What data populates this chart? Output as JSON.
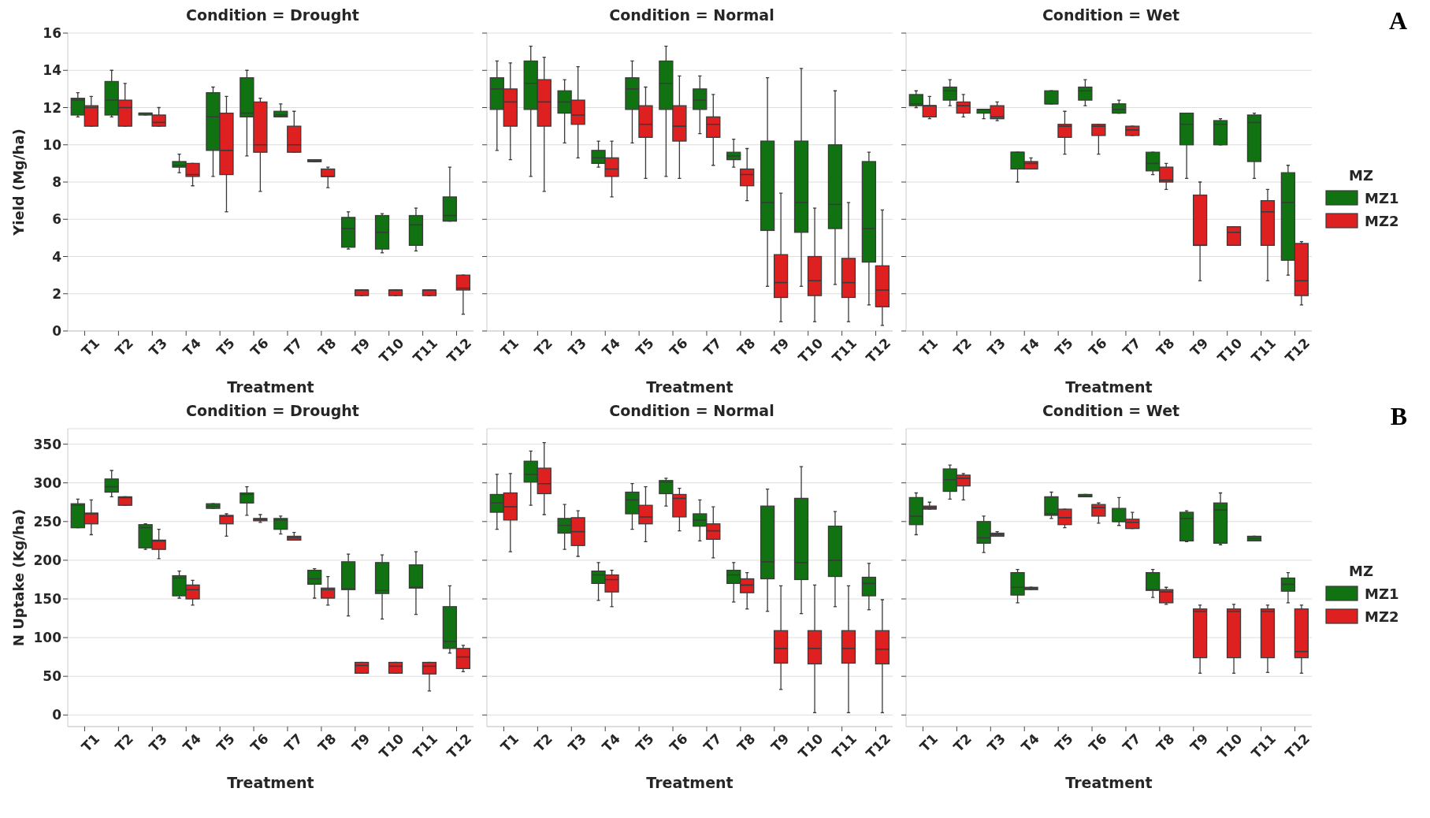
{
  "chart_data": [
    {
      "type": "box",
      "title": "Condition = Drought",
      "xlabel": "Treatment",
      "ylabel": "Yield (Mg/ha)",
      "categories": [
        "T1",
        "T2",
        "T3",
        "T4",
        "T5",
        "T6",
        "T7",
        "T8",
        "T9",
        "T10",
        "T11",
        "T12"
      ],
      "ylim": [
        0,
        16
      ],
      "yticks": [
        0,
        2,
        4,
        6,
        8,
        10,
        12,
        14,
        16
      ],
      "grid": "y",
      "series": [
        {
          "color": "#117211",
          "boxes": [
            {
              "low": 11.5,
              "q1": 11.6,
              "median": 12.4,
              "q3": 12.5,
              "high": 12.8
            },
            {
              "low": 11.5,
              "q1": 11.6,
              "median": 12.4,
              "q3": 13.4,
              "high": 14.0
            },
            {
              "low": 11.6,
              "q1": 11.6,
              "median": 11.7,
              "q3": 11.7,
              "high": 11.7
            },
            {
              "low": 8.5,
              "q1": 8.8,
              "median": 8.9,
              "q3": 9.1,
              "high": 9.5
            },
            {
              "low": 8.3,
              "q1": 9.7,
              "median": 11.5,
              "q3": 12.8,
              "high": 13.1
            },
            {
              "low": 9.4,
              "q1": 11.5,
              "median": 11.7,
              "q3": 13.6,
              "high": 14.0
            },
            {
              "low": 11.5,
              "q1": 11.5,
              "median": 11.6,
              "q3": 11.8,
              "high": 12.2
            },
            {
              "low": 9.1,
              "q1": 9.1,
              "median": 9.1,
              "q3": 9.2,
              "high": 9.2
            },
            {
              "low": 4.4,
              "q1": 4.5,
              "median": 5.5,
              "q3": 6.1,
              "high": 6.4
            },
            {
              "low": 4.2,
              "q1": 4.4,
              "median": 5.3,
              "q3": 6.2,
              "high": 6.3
            },
            {
              "low": 4.3,
              "q1": 4.6,
              "median": 5.7,
              "q3": 6.2,
              "high": 6.6
            },
            {
              "low": 5.9,
              "q1": 5.9,
              "median": 6.2,
              "q3": 7.2,
              "high": 8.8
            }
          ]
        },
        {
          "color": "#df2020",
          "boxes": [
            {
              "low": 11.0,
              "q1": 11.0,
              "median": 12.0,
              "q3": 12.1,
              "high": 12.6
            },
            {
              "low": 11.0,
              "q1": 11.0,
              "median": 12.0,
              "q3": 12.4,
              "high": 13.3
            },
            {
              "low": 11.0,
              "q1": 11.0,
              "median": 11.2,
              "q3": 11.6,
              "high": 12.0
            },
            {
              "low": 7.8,
              "q1": 8.3,
              "median": 8.4,
              "q3": 9.0,
              "high": 9.0
            },
            {
              "low": 6.4,
              "q1": 8.4,
              "median": 9.7,
              "q3": 11.7,
              "high": 12.6
            },
            {
              "low": 7.5,
              "q1": 9.6,
              "median": 10.0,
              "q3": 12.3,
              "high": 12.5
            },
            {
              "low": 9.6,
              "q1": 9.6,
              "median": 10.0,
              "q3": 11.0,
              "high": 11.8
            },
            {
              "low": 7.7,
              "q1": 8.3,
              "median": 8.3,
              "q3": 8.7,
              "high": 8.8
            },
            {
              "low": 1.9,
              "q1": 1.9,
              "median": 2.2,
              "q3": 2.2,
              "high": 2.2
            },
            {
              "low": 1.9,
              "q1": 1.9,
              "median": 2.2,
              "q3": 2.2,
              "high": 2.2
            },
            {
              "low": 1.9,
              "q1": 1.9,
              "median": 2.2,
              "q3": 2.2,
              "high": 2.2
            },
            {
              "low": 0.9,
              "q1": 2.2,
              "median": 2.3,
              "q3": 3.0,
              "high": 3.0
            }
          ]
        }
      ]
    },
    {
      "type": "box",
      "title": "Condition = Normal",
      "xlabel": "Treatment",
      "categories": [
        "T1",
        "T2",
        "T3",
        "T4",
        "T5",
        "T6",
        "T7",
        "T8",
        "T9",
        "T10",
        "T11",
        "T12"
      ],
      "ylim": [
        0,
        16
      ],
      "yticks": [
        0,
        2,
        4,
        6,
        8,
        10,
        12,
        14,
        16
      ],
      "grid": "y",
      "tick_labels": "x",
      "series": [
        {
          "color": "#117211",
          "boxes": [
            {
              "low": 9.7,
              "q1": 11.9,
              "median": 13.0,
              "q3": 13.6,
              "high": 14.5
            },
            {
              "low": 8.3,
              "q1": 11.9,
              "median": 13.3,
              "q3": 14.5,
              "high": 15.3
            },
            {
              "low": 10.1,
              "q1": 11.7,
              "median": 12.3,
              "q3": 12.9,
              "high": 13.5
            },
            {
              "low": 8.8,
              "q1": 9.0,
              "median": 9.3,
              "q3": 9.7,
              "high": 10.2
            },
            {
              "low": 10.1,
              "q1": 11.9,
              "median": 13.0,
              "q3": 13.6,
              "high": 14.5
            },
            {
              "low": 8.3,
              "q1": 11.9,
              "median": 13.3,
              "q3": 14.5,
              "high": 15.3
            },
            {
              "low": 10.6,
              "q1": 11.9,
              "median": 12.4,
              "q3": 13.0,
              "high": 13.7
            },
            {
              "low": 8.8,
              "q1": 9.2,
              "median": 9.4,
              "q3": 9.6,
              "high": 10.3
            },
            {
              "low": 2.4,
              "q1": 5.4,
              "median": 6.9,
              "q3": 10.2,
              "high": 13.6
            },
            {
              "low": 2.4,
              "q1": 5.3,
              "median": 6.9,
              "q3": 10.2,
              "high": 14.1
            },
            {
              "low": 2.5,
              "q1": 5.5,
              "median": 6.8,
              "q3": 10.0,
              "high": 12.9
            },
            {
              "low": 1.4,
              "q1": 3.7,
              "median": 5.5,
              "q3": 9.1,
              "high": 9.6
            }
          ]
        },
        {
          "color": "#df2020",
          "boxes": [
            {
              "low": 9.2,
              "q1": 11.0,
              "median": 12.3,
              "q3": 13.0,
              "high": 14.4
            },
            {
              "low": 7.5,
              "q1": 11.0,
              "median": 12.3,
              "q3": 13.5,
              "high": 14.7
            },
            {
              "low": 9.3,
              "q1": 11.1,
              "median": 11.6,
              "q3": 12.4,
              "high": 14.2
            },
            {
              "low": 7.2,
              "q1": 8.3,
              "median": 8.7,
              "q3": 9.3,
              "high": 10.2
            },
            {
              "low": 8.2,
              "q1": 10.4,
              "median": 11.1,
              "q3": 12.1,
              "high": 13.1
            },
            {
              "low": 8.2,
              "q1": 10.2,
              "median": 11.0,
              "q3": 12.1,
              "high": 13.7
            },
            {
              "low": 8.9,
              "q1": 10.4,
              "median": 11.1,
              "q3": 11.5,
              "high": 12.7
            },
            {
              "low": 7.0,
              "q1": 7.8,
              "median": 8.4,
              "q3": 8.7,
              "high": 9.8
            },
            {
              "low": 0.5,
              "q1": 1.8,
              "median": 2.6,
              "q3": 4.1,
              "high": 7.4
            },
            {
              "low": 0.5,
              "q1": 1.9,
              "median": 2.7,
              "q3": 4.0,
              "high": 6.6
            },
            {
              "low": 0.5,
              "q1": 1.8,
              "median": 2.6,
              "q3": 3.9,
              "high": 6.9
            },
            {
              "low": 0.3,
              "q1": 1.3,
              "median": 2.2,
              "q3": 3.5,
              "high": 6.5
            }
          ]
        }
      ]
    },
    {
      "type": "box",
      "title": "Condition = Wet",
      "xlabel": "Treatment",
      "categories": [
        "T1",
        "T2",
        "T3",
        "T4",
        "T5",
        "T6",
        "T7",
        "T8",
        "T9",
        "T10",
        "T11",
        "T12"
      ],
      "ylim": [
        0,
        16
      ],
      "yticks": [
        0,
        2,
        4,
        6,
        8,
        10,
        12,
        14,
        16
      ],
      "grid": "y",
      "tick_labels": "x",
      "legend": "right",
      "legend_title": "MZ",
      "annotations": [
        "A"
      ],
      "series": [
        {
          "name": "MZ1",
          "color": "#117211",
          "boxes": [
            {
              "low": 12.0,
              "q1": 12.1,
              "median": 12.2,
              "q3": 12.7,
              "high": 12.9
            },
            {
              "low": 12.1,
              "q1": 12.4,
              "median": 12.9,
              "q3": 13.1,
              "high": 13.5
            },
            {
              "low": 11.4,
              "q1": 11.7,
              "median": 11.9,
              "q3": 11.9,
              "high": 11.9
            },
            {
              "low": 8.0,
              "q1": 8.7,
              "median": 9.6,
              "q3": 9.6,
              "high": 9.6
            },
            {
              "low": 12.2,
              "q1": 12.2,
              "median": 12.2,
              "q3": 12.9,
              "high": 12.9
            },
            {
              "low": 12.1,
              "q1": 12.4,
              "median": 12.9,
              "q3": 13.1,
              "high": 13.5
            },
            {
              "low": 11.7,
              "q1": 11.7,
              "median": 11.9,
              "q3": 12.2,
              "high": 12.4
            },
            {
              "low": 8.4,
              "q1": 8.6,
              "median": 9.0,
              "q3": 9.6,
              "high": 9.6
            },
            {
              "low": 8.2,
              "q1": 10.0,
              "median": 11.1,
              "q3": 11.7,
              "high": 11.7
            },
            {
              "low": 10.0,
              "q1": 10.0,
              "median": 11.1,
              "q3": 11.3,
              "high": 11.4
            },
            {
              "low": 8.2,
              "q1": 9.1,
              "median": 11.2,
              "q3": 11.6,
              "high": 11.7
            },
            {
              "low": 3.0,
              "q1": 3.8,
              "median": 6.9,
              "q3": 8.5,
              "high": 8.9
            }
          ]
        },
        {
          "name": "MZ2",
          "color": "#df2020",
          "boxes": [
            {
              "low": 11.4,
              "q1": 11.5,
              "median": 12.1,
              "q3": 12.1,
              "high": 12.6
            },
            {
              "low": 11.5,
              "q1": 11.7,
              "median": 12.1,
              "q3": 12.3,
              "high": 12.7
            },
            {
              "low": 11.3,
              "q1": 11.4,
              "median": 11.5,
              "q3": 12.1,
              "high": 12.3
            },
            {
              "low": 8.7,
              "q1": 8.7,
              "median": 9.0,
              "q3": 9.1,
              "high": 9.3
            },
            {
              "low": 9.5,
              "q1": 10.4,
              "median": 11.0,
              "q3": 11.1,
              "high": 11.8
            },
            {
              "low": 9.5,
              "q1": 10.5,
              "median": 11.0,
              "q3": 11.1,
              "high": 11.1
            },
            {
              "low": 10.5,
              "q1": 10.5,
              "median": 10.8,
              "q3": 11.0,
              "high": 11.0
            },
            {
              "low": 7.6,
              "q1": 8.0,
              "median": 8.1,
              "q3": 8.8,
              "high": 9.0
            },
            {
              "low": 2.7,
              "q1": 4.6,
              "median": 4.6,
              "q3": 7.3,
              "high": 8.0
            },
            {
              "low": 4.6,
              "q1": 4.6,
              "median": 5.3,
              "q3": 5.6,
              "high": 5.6
            },
            {
              "low": 2.7,
              "q1": 4.6,
              "median": 6.4,
              "q3": 7.0,
              "high": 7.6
            },
            {
              "low": 1.4,
              "q1": 1.9,
              "median": 2.7,
              "q3": 4.7,
              "high": 4.8
            }
          ]
        }
      ]
    },
    {
      "type": "box",
      "title": "Condition = Drought",
      "xlabel": "Treatment",
      "ylabel": "N Uptake (Kg/ha)",
      "categories": [
        "T1",
        "T2",
        "T3",
        "T4",
        "T5",
        "T6",
        "T7",
        "T8",
        "T9",
        "T10",
        "T11",
        "T12"
      ],
      "ylim": [
        -15,
        370
      ],
      "yticks": [
        0,
        50,
        100,
        150,
        200,
        250,
        300,
        350
      ],
      "grid": "y",
      "series": [
        {
          "color": "#117211",
          "boxes": [
            {
              "low": 242,
              "q1": 242,
              "median": 271,
              "q3": 273,
              "high": 279
            },
            {
              "low": 282,
              "q1": 288,
              "median": 295,
              "q3": 305,
              "high": 316
            },
            {
              "low": 214,
              "q1": 216,
              "median": 242,
              "q3": 246,
              "high": 247
            },
            {
              "low": 151,
              "q1": 154,
              "median": 177,
              "q3": 180,
              "high": 186
            },
            {
              "low": 267,
              "q1": 267,
              "median": 270,
              "q3": 273,
              "high": 273
            },
            {
              "low": 258,
              "q1": 274,
              "median": 285,
              "q3": 287,
              "high": 295
            },
            {
              "low": 234,
              "q1": 240,
              "median": 252,
              "q3": 254,
              "high": 257
            },
            {
              "low": 151,
              "q1": 169,
              "median": 176,
              "q3": 187,
              "high": 189
            },
            {
              "low": 128,
              "q1": 162,
              "median": 163,
              "q3": 198,
              "high": 208
            },
            {
              "low": 124,
              "q1": 157,
              "median": 161,
              "q3": 197,
              "high": 207
            },
            {
              "low": 130,
              "q1": 164,
              "median": 165,
              "q3": 194,
              "high": 211
            },
            {
              "low": 80,
              "q1": 86,
              "median": 95,
              "q3": 140,
              "high": 167
            }
          ]
        },
        {
          "color": "#df2020",
          "boxes": [
            {
              "low": 233,
              "q1": 247,
              "median": 260,
              "q3": 261,
              "high": 278
            },
            {
              "low": 271,
              "q1": 271,
              "median": 281,
              "q3": 282,
              "high": 282
            },
            {
              "low": 202,
              "q1": 214,
              "median": 225,
              "q3": 226,
              "high": 240
            },
            {
              "low": 142,
              "q1": 150,
              "median": 162,
              "q3": 168,
              "high": 174
            },
            {
              "low": 231,
              "q1": 247,
              "median": 257,
              "q3": 258,
              "high": 260
            },
            {
              "low": 249,
              "q1": 251,
              "median": 253,
              "q3": 254,
              "high": 259
            },
            {
              "low": 226,
              "q1": 226,
              "median": 229,
              "q3": 231,
              "high": 236
            },
            {
              "low": 142,
              "q1": 151,
              "median": 162,
              "q3": 164,
              "high": 179
            },
            {
              "low": 54,
              "q1": 54,
              "median": 64,
              "q3": 68,
              "high": 68
            },
            {
              "low": 54,
              "q1": 54,
              "median": 63,
              "q3": 68,
              "high": 68
            },
            {
              "low": 31,
              "q1": 53,
              "median": 63,
              "q3": 68,
              "high": 68
            },
            {
              "low": 56,
              "q1": 60,
              "median": 75,
              "q3": 86,
              "high": 90
            }
          ]
        }
      ]
    },
    {
      "type": "box",
      "title": "Condition = Normal",
      "xlabel": "Treatment",
      "categories": [
        "T1",
        "T2",
        "T3",
        "T4",
        "T5",
        "T6",
        "T7",
        "T8",
        "T9",
        "T10",
        "T11",
        "T12"
      ],
      "ylim": [
        -15,
        370
      ],
      "yticks": [
        0,
        50,
        100,
        150,
        200,
        250,
        300,
        350
      ],
      "grid": "y",
      "tick_labels": "x",
      "series": [
        {
          "color": "#117211",
          "boxes": [
            {
              "low": 240,
              "q1": 262,
              "median": 274,
              "q3": 285,
              "high": 311
            },
            {
              "low": 271,
              "q1": 301,
              "median": 311,
              "q3": 328,
              "high": 341
            },
            {
              "low": 214,
              "q1": 235,
              "median": 245,
              "q3": 254,
              "high": 272
            },
            {
              "low": 148,
              "q1": 170,
              "median": 181,
              "q3": 186,
              "high": 197
            },
            {
              "low": 240,
              "q1": 260,
              "median": 278,
              "q3": 288,
              "high": 299
            },
            {
              "low": 270,
              "q1": 286,
              "median": 301,
              "q3": 303,
              "high": 306
            },
            {
              "low": 225,
              "q1": 244,
              "median": 252,
              "q3": 260,
              "high": 278
            },
            {
              "low": 146,
              "q1": 170,
              "median": 181,
              "q3": 187,
              "high": 197
            },
            {
              "low": 134,
              "q1": 176,
              "median": 198,
              "q3": 270,
              "high": 292
            },
            {
              "low": 131,
              "q1": 175,
              "median": 197,
              "q3": 280,
              "high": 321
            },
            {
              "low": 140,
              "q1": 179,
              "median": 200,
              "q3": 244,
              "high": 263
            },
            {
              "low": 136,
              "q1": 154,
              "median": 170,
              "q3": 178,
              "high": 196
            }
          ]
        },
        {
          "color": "#df2020",
          "boxes": [
            {
              "low": 211,
              "q1": 252,
              "median": 269,
              "q3": 287,
              "high": 312
            },
            {
              "low": 259,
              "q1": 286,
              "median": 299,
              "q3": 319,
              "high": 352
            },
            {
              "low": 205,
              "q1": 219,
              "median": 237,
              "q3": 255,
              "high": 264
            },
            {
              "low": 140,
              "q1": 159,
              "median": 175,
              "q3": 181,
              "high": 187
            },
            {
              "low": 224,
              "q1": 247,
              "median": 256,
              "q3": 271,
              "high": 295
            },
            {
              "low": 238,
              "q1": 256,
              "median": 280,
              "q3": 285,
              "high": 293
            },
            {
              "low": 203,
              "q1": 227,
              "median": 238,
              "q3": 247,
              "high": 269
            },
            {
              "low": 137,
              "q1": 158,
              "median": 168,
              "q3": 176,
              "high": 184
            },
            {
              "low": 33,
              "q1": 67,
              "median": 86,
              "q3": 109,
              "high": 167
            },
            {
              "low": 3,
              "q1": 66,
              "median": 86,
              "q3": 109,
              "high": 168
            },
            {
              "low": 3,
              "q1": 67,
              "median": 86,
              "q3": 109,
              "high": 167
            },
            {
              "low": 3,
              "q1": 66,
              "median": 85,
              "q3": 109,
              "high": 149
            }
          ]
        }
      ]
    },
    {
      "type": "box",
      "title": "Condition = Wet",
      "xlabel": "Treatment",
      "categories": [
        "T1",
        "T2",
        "T3",
        "T4",
        "T5",
        "T6",
        "T7",
        "T8",
        "T9",
        "T10",
        "T11",
        "T12"
      ],
      "ylim": [
        -15,
        370
      ],
      "yticks": [
        0,
        50,
        100,
        150,
        200,
        250,
        300,
        350
      ],
      "grid": "y",
      "tick_labels": "x",
      "legend": "right",
      "legend_title": "MZ",
      "annotations": [
        "B"
      ],
      "series": [
        {
          "name": "MZ1",
          "color": "#117211",
          "boxes": [
            {
              "low": 233,
              "q1": 246,
              "median": 257,
              "q3": 281,
              "high": 287
            },
            {
              "low": 279,
              "q1": 289,
              "median": 304,
              "q3": 318,
              "high": 323
            },
            {
              "low": 210,
              "q1": 222,
              "median": 229,
              "q3": 250,
              "high": 257
            },
            {
              "low": 145,
              "q1": 155,
              "median": 165,
              "q3": 184,
              "high": 188
            },
            {
              "low": 254,
              "q1": 258,
              "median": 260,
              "q3": 282,
              "high": 288
            },
            {
              "low": 282,
              "q1": 282,
              "median": 283,
              "q3": 285,
              "high": 285
            },
            {
              "low": 245,
              "q1": 250,
              "median": 250,
              "q3": 267,
              "high": 281
            },
            {
              "low": 152,
              "q1": 161,
              "median": 162,
              "q3": 184,
              "high": 188
            },
            {
              "low": 224,
              "q1": 225,
              "median": 254,
              "q3": 262,
              "high": 264
            },
            {
              "low": 220,
              "q1": 222,
              "median": 265,
              "q3": 274,
              "high": 287
            },
            {
              "low": 225,
              "q1": 225,
              "median": 228,
              "q3": 231,
              "high": 231
            },
            {
              "low": 145,
              "q1": 160,
              "median": 169,
              "q3": 177,
              "high": 184
            }
          ]
        },
        {
          "name": "MZ2",
          "color": "#df2020",
          "boxes": [
            {
              "low": 266,
              "q1": 266,
              "median": 268,
              "q3": 270,
              "high": 275
            },
            {
              "low": 278,
              "q1": 296,
              "median": 306,
              "q3": 310,
              "high": 312
            },
            {
              "low": 231,
              "q1": 231,
              "median": 233,
              "q3": 235,
              "high": 237
            },
            {
              "low": 162,
              "q1": 162,
              "median": 164,
              "q3": 165,
              "high": 165
            },
            {
              "low": 242,
              "q1": 246,
              "median": 255,
              "q3": 266,
              "high": 266
            },
            {
              "low": 248,
              "q1": 257,
              "median": 268,
              "q3": 272,
              "high": 274
            },
            {
              "low": 241,
              "q1": 241,
              "median": 249,
              "q3": 253,
              "high": 262
            },
            {
              "low": 143,
              "q1": 145,
              "median": 159,
              "q3": 162,
              "high": 165
            },
            {
              "low": 54,
              "q1": 74,
              "median": 134,
              "q3": 137,
              "high": 142
            },
            {
              "low": 54,
              "q1": 74,
              "median": 134,
              "q3": 137,
              "high": 143
            },
            {
              "low": 55,
              "q1": 74,
              "median": 134,
              "q3": 137,
              "high": 142
            },
            {
              "low": 54,
              "q1": 74,
              "median": 82,
              "q3": 137,
              "high": 142
            }
          ]
        }
      ]
    }
  ]
}
